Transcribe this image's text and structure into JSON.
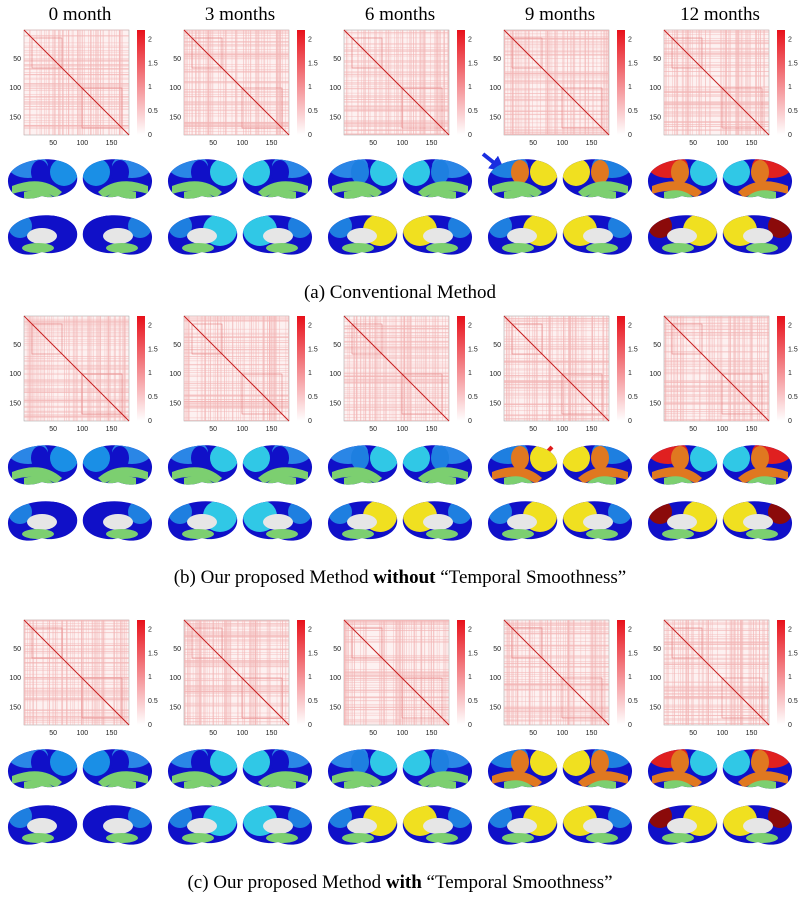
{
  "columns": [
    "0 month",
    "3 months",
    "6 months",
    "9 months",
    "12 months"
  ],
  "matrix_axis": {
    "xticks": [
      50,
      100,
      150
    ],
    "yticks": [
      50,
      100,
      150
    ],
    "colorbar_ticks": [
      0,
      0.5,
      1,
      1.5,
      2
    ]
  },
  "panels": [
    {
      "caption": [
        "(a) Conventional Method"
      ]
    },
    {
      "caption": [
        "(b) Our proposed Method ",
        "without",
        " “Temporal Smoothness”"
      ]
    },
    {
      "caption": [
        "(c) Our proposed Method ",
        "with",
        " “Temporal Smoothness”"
      ]
    }
  ]
}
